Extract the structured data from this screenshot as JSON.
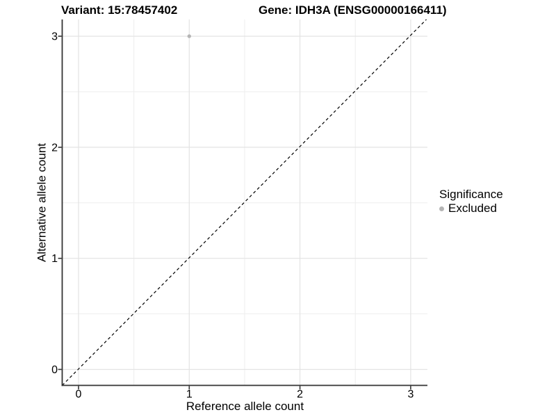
{
  "titles": {
    "variant": "Variant: 15:78457402",
    "gene": "Gene: IDH3A (ENSG00000166411)"
  },
  "axes": {
    "x_label": "Reference allele count",
    "y_label": "Alternative allele count"
  },
  "legend": {
    "title": "Significance",
    "items": [
      {
        "label": "Excluded",
        "color": "#b5b5b5"
      }
    ]
  },
  "colors": {
    "background": "#ffffff",
    "grid_major": "#e3e3e3",
    "grid_minor": "#eeeeee",
    "axis_line": "#333333",
    "tick_mark": "#333333",
    "text": "#000000",
    "point": "#b5b5b5",
    "reference_line": "#000000"
  },
  "chart_data": {
    "type": "scatter",
    "title": "Variant: 15:78457402   /   Gene: IDH3A (ENSG00000166411)",
    "xlabel": "Reference allele count",
    "ylabel": "Alternative allele count",
    "xlim": [
      -0.15,
      3.15
    ],
    "ylim": [
      -0.15,
      3.15
    ],
    "x_ticks": [
      0,
      1,
      2,
      3
    ],
    "y_ticks": [
      0,
      1,
      2,
      3
    ],
    "grid": "major and minor gridlines, white panel, left+bottom axis lines only",
    "legend_position": "right, vertically centered",
    "series": [
      {
        "name": "Excluded",
        "color": "#b5b5b5",
        "points": [
          {
            "x": 1,
            "y": 3
          }
        ]
      }
    ],
    "reference_line": {
      "type": "identity y=x",
      "style": "dashed",
      "color": "#000000"
    }
  }
}
